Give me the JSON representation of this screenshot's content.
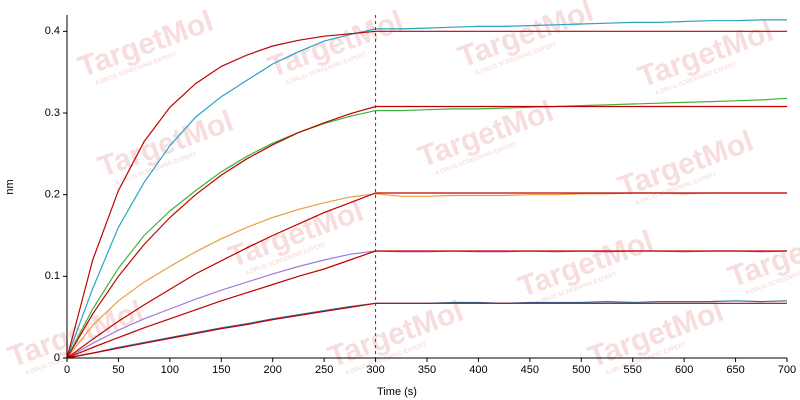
{
  "chart_data": {
    "type": "line",
    "xlabel": "Time (s)",
    "ylabel": "nm",
    "xlim": [
      0,
      700
    ],
    "ylim": [
      0,
      0.42
    ],
    "xticks": [
      0,
      50,
      100,
      150,
      200,
      250,
      300,
      350,
      400,
      450,
      500,
      550,
      600,
      650,
      700
    ],
    "yticks": [
      0,
      0.1,
      0.2,
      0.3,
      0.4
    ],
    "vline": 300,
    "vline_color": "#b01010",
    "watermark": {
      "text": "TargetMol",
      "tagline": "A DRUG SCREENING EXPERT"
    },
    "x": [
      0,
      25,
      50,
      75,
      100,
      125,
      150,
      175,
      200,
      225,
      250,
      275,
      300,
      325,
      350,
      375,
      400,
      425,
      450,
      475,
      500,
      525,
      550,
      575,
      600,
      625,
      650,
      675,
      700
    ],
    "series": [
      {
        "color": "#2aa3c4",
        "values": [
          0,
          0.085,
          0.16,
          0.215,
          0.26,
          0.295,
          0.32,
          0.34,
          0.36,
          0.375,
          0.388,
          0.396,
          0.403,
          0.403,
          0.404,
          0.405,
          0.406,
          0.406,
          0.407,
          0.408,
          0.409,
          0.41,
          0.411,
          0.411,
          0.412,
          0.413,
          0.413,
          0.414,
          0.414
        ]
      },
      {
        "color": "#3cb43c",
        "values": [
          0,
          0.06,
          0.11,
          0.15,
          0.18,
          0.205,
          0.228,
          0.247,
          0.263,
          0.276,
          0.287,
          0.296,
          0.303,
          0.303,
          0.304,
          0.305,
          0.305,
          0.306,
          0.307,
          0.308,
          0.309,
          0.31,
          0.311,
          0.312,
          0.313,
          0.314,
          0.315,
          0.316,
          0.318
        ]
      },
      {
        "color": "#e8a040",
        "values": [
          0,
          0.04,
          0.07,
          0.093,
          0.112,
          0.13,
          0.146,
          0.16,
          0.172,
          0.182,
          0.19,
          0.197,
          0.201,
          0.198,
          0.198,
          0.199,
          0.199,
          0.199,
          0.2,
          0.2,
          0.201,
          0.201,
          0.202,
          0.202,
          0.201,
          0.202,
          0.202,
          0.202,
          0.202
        ]
      },
      {
        "color": "#a07ad8",
        "values": [
          0,
          0.018,
          0.034,
          0.048,
          0.06,
          0.072,
          0.083,
          0.093,
          0.103,
          0.112,
          0.12,
          0.127,
          0.131,
          0.13,
          0.13,
          0.131,
          0.13,
          0.13,
          0.131,
          0.13,
          0.131,
          0.13,
          0.131,
          0.131,
          0.13,
          0.131,
          0.131,
          0.13,
          0.131
        ]
      },
      {
        "color": "#1f78a8",
        "values": [
          0,
          0.006,
          0.013,
          0.019,
          0.025,
          0.031,
          0.037,
          0.042,
          0.048,
          0.053,
          0.058,
          0.063,
          0.067,
          0.067,
          0.067,
          0.068,
          0.068,
          0.067,
          0.068,
          0.068,
          0.068,
          0.069,
          0.068,
          0.069,
          0.069,
          0.069,
          0.07,
          0.069,
          0.07
        ]
      },
      {
        "color": "#c00000",
        "values": [
          0,
          0.12,
          0.205,
          0.265,
          0.307,
          0.336,
          0.357,
          0.371,
          0.382,
          0.389,
          0.394,
          0.397,
          0.4,
          0.4,
          0.4,
          0.4,
          0.4,
          0.4,
          0.4,
          0.4,
          0.4,
          0.4,
          0.4,
          0.4,
          0.4,
          0.4,
          0.4,
          0.4,
          0.4
        ]
      },
      {
        "color": "#c00000",
        "values": [
          0,
          0.054,
          0.1,
          0.139,
          0.172,
          0.2,
          0.224,
          0.244,
          0.261,
          0.276,
          0.288,
          0.299,
          0.308,
          0.308,
          0.308,
          0.308,
          0.308,
          0.308,
          0.308,
          0.308,
          0.308,
          0.308,
          0.308,
          0.308,
          0.308,
          0.308,
          0.308,
          0.308,
          0.308
        ]
      },
      {
        "color": "#c00000",
        "values": [
          0,
          0.023,
          0.045,
          0.065,
          0.084,
          0.103,
          0.119,
          0.135,
          0.15,
          0.164,
          0.178,
          0.19,
          0.202,
          0.202,
          0.202,
          0.202,
          0.202,
          0.202,
          0.202,
          0.202,
          0.202,
          0.202,
          0.202,
          0.202,
          0.202,
          0.202,
          0.202,
          0.202,
          0.202
        ]
      },
      {
        "color": "#c00000",
        "values": [
          0,
          0.013,
          0.025,
          0.037,
          0.048,
          0.059,
          0.07,
          0.08,
          0.09,
          0.1,
          0.109,
          0.12,
          0.131,
          0.131,
          0.131,
          0.131,
          0.131,
          0.131,
          0.131,
          0.131,
          0.131,
          0.131,
          0.131,
          0.131,
          0.131,
          0.131,
          0.131,
          0.131,
          0.131
        ]
      },
      {
        "color": "#c00000",
        "values": [
          0,
          0.006,
          0.012,
          0.018,
          0.024,
          0.03,
          0.036,
          0.041,
          0.047,
          0.052,
          0.057,
          0.062,
          0.067,
          0.067,
          0.067,
          0.067,
          0.067,
          0.067,
          0.067,
          0.067,
          0.067,
          0.067,
          0.067,
          0.067,
          0.067,
          0.067,
          0.067,
          0.067,
          0.067
        ]
      }
    ]
  }
}
